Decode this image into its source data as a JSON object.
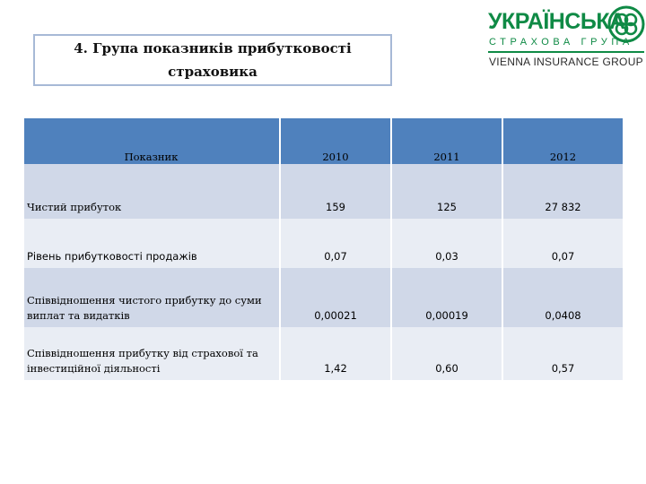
{
  "slide": {
    "title_line1": "4. Група показників прибутковості",
    "title_line2": "страховика"
  },
  "logo": {
    "brand": "УКРАЇНСЬКА",
    "subtitle": "СТРАХОВА ГРУПА",
    "group": "VIENNA INSURANCE GROUP",
    "accent_color": "#0f8a45",
    "icon": "knot-emblem-icon"
  },
  "table": {
    "header": [
      "Показник",
      "2010",
      "2011",
      "2012"
    ],
    "rows": [
      {
        "label": "Чистий прибуток",
        "values": [
          "159",
          "125",
          "27 832"
        ]
      },
      {
        "label": "Рівень прибутковості продажів",
        "values": [
          "0,07",
          "0,03",
          "0,07"
        ]
      },
      {
        "label": "Співвідношення чистого прибутку до суми виплат та видатків",
        "values": [
          "0,00021",
          "0,00019",
          "0,0408"
        ]
      },
      {
        "label": "Співвідношення прибутку від страхової та інвестиційної діяльності",
        "values": [
          "1,42",
          "0,60",
          "0,57"
        ]
      }
    ],
    "header_color": "#4f81bd",
    "row_dark_color": "#d0d8e8",
    "row_light_color": "#e9edf4"
  }
}
